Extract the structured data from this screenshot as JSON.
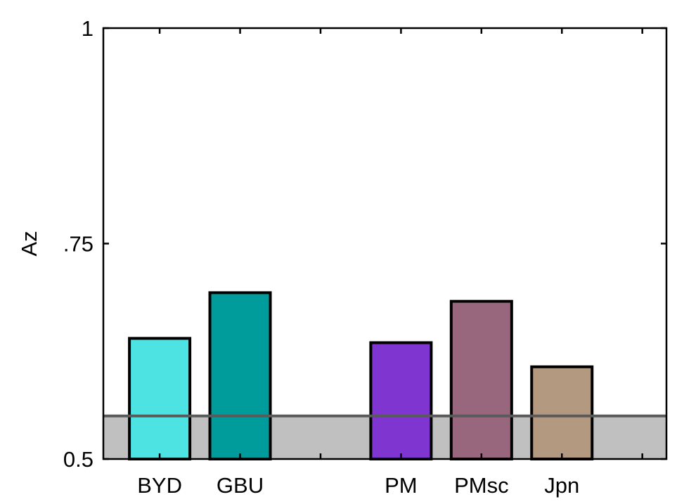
{
  "chart_data": {
    "type": "bar",
    "title": "",
    "xlabel": "",
    "ylabel": "Az",
    "ylim": [
      0.5,
      1
    ],
    "yticks": [
      {
        "value": 0.5,
        "label": "0.5"
      },
      {
        "value": 0.75,
        "label": ".75"
      },
      {
        "value": 1,
        "label": "1"
      }
    ],
    "bars": [
      {
        "label": "BYD",
        "slot": 1,
        "value": 0.64,
        "color": "#4de3e3"
      },
      {
        "label": "GBU",
        "slot": 2,
        "value": 0.693,
        "color": "#009b9b"
      },
      {
        "label": "PM",
        "slot": 4,
        "value": 0.635,
        "color": "#7f35d0"
      },
      {
        "label": "PMsc",
        "slot": 5,
        "value": 0.683,
        "color": "#99677d"
      },
      {
        "label": "Jpn",
        "slot": 6,
        "value": 0.607,
        "color": "#b39980"
      }
    ],
    "x_range": [
      0.3,
      7.3
    ],
    "baseline": {
      "value": 0.55,
      "color": "#5a5a5a",
      "shade_color": "#c0c0c0"
    },
    "grid": false,
    "legend": "none"
  }
}
